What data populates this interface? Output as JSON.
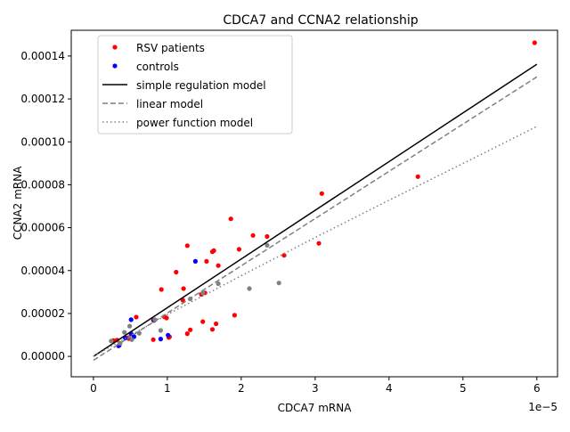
{
  "chart_data": {
    "type": "scatter",
    "title": "CDCA7 and CCNA2 relationship",
    "xlabel": "CDCA7 mRNA",
    "ylabel": "CCNA2 mRNA",
    "x_offset_label": "1e−5",
    "xlim": [
      -3e-06,
      6.28e-05
    ],
    "ylim": [
      -9.5e-06,
      0.000152
    ],
    "x_ticks": [
      0,
      1e-05,
      2e-05,
      3e-05,
      4e-05,
      5e-05,
      6e-05
    ],
    "x_tick_labels": [
      "0",
      "1",
      "2",
      "3",
      "4",
      "5",
      "6"
    ],
    "y_ticks": [
      0,
      2e-05,
      4e-05,
      6e-05,
      8e-05,
      0.0001,
      0.00012,
      0.00014
    ],
    "y_tick_labels": [
      "0.00000",
      "0.00002",
      "0.00004",
      "0.00006",
      "0.00008",
      "0.00010",
      "0.00012",
      "0.00014"
    ],
    "grid": false,
    "legend_position": "top-left",
    "legend": [
      {
        "label": "RSV patients",
        "kind": "marker",
        "color": "#ff0000"
      },
      {
        "label": "controls",
        "kind": "marker",
        "color": "#0000ff"
      },
      {
        "label": "simple regulation model",
        "kind": "line",
        "color": "#000000",
        "dash": "solid"
      },
      {
        "label": "linear model",
        "kind": "line",
        "color": "#808080",
        "dash": "dashed"
      },
      {
        "label": "power function model",
        "kind": "line",
        "color": "#808080",
        "dash": "dotted"
      }
    ],
    "series": [
      {
        "name": "RSV patients",
        "color": "#ff0000",
        "x": [
          5.97e-05,
          4.39e-05,
          3.09e-05,
          3.05e-05,
          2.58e-05,
          2.35e-05,
          2.16e-05,
          1.86e-05,
          1.97e-05,
          1.63e-05,
          1.61e-05,
          1.69e-05,
          1.27e-05,
          1.53e-05,
          1.12e-05,
          1.22e-05,
          9.2e-06,
          1.21e-05,
          1.46e-05,
          1.51e-05,
          1.91e-05,
          1.66e-05,
          1.61e-05,
          1.48e-05,
          1.31e-05,
          1.27e-05,
          1.02e-05,
          9.6e-06,
          8.1e-06,
          5.8e-06,
          1.03e-05,
          9.9e-06,
          8.1e-06,
          4.8e-06,
          3.2e-06,
          2.7e-06,
          4.8e-06
        ],
        "y": [
          0.0001462,
          8.38e-05,
          7.59e-05,
          5.27e-05,
          4.71e-05,
          5.59e-05,
          5.64e-05,
          6.41e-05,
          4.99e-05,
          4.93e-05,
          4.88e-05,
          4.23e-05,
          5.16e-05,
          4.43e-05,
          3.93e-05,
          3.16e-05,
          3.12e-05,
          2.62e-05,
          2.89e-05,
          2.96e-05,
          1.92e-05,
          1.52e-05,
          1.26e-05,
          1.62e-05,
          1.24e-05,
          1.06e-05,
          8.8e-06,
          1.85e-05,
          7.8e-06,
          1.83e-05,
          9.1e-06,
          1.79e-05,
          1.69e-05,
          8.3e-06,
          7.6e-06,
          7.4e-06,
          8.8e-06
        ]
      },
      {
        "name": "controls",
        "color": "#0000ff",
        "x": [
          1.38e-05,
          5.1e-06,
          8.2e-06,
          5.1e-06,
          5.5e-06,
          4.3e-06,
          3.5e-06,
          9.1e-06,
          1.01e-05,
          3.4e-06
        ],
        "y": [
          4.43e-05,
          1.71e-05,
          1.68e-05,
          1.06e-05,
          9.2e-06,
          8.6e-06,
          5.2e-06,
          8.1e-06,
          9.9e-06,
          4.9e-06
        ]
      },
      {
        "name": "",
        "color": "#808080",
        "x": [
          2.35e-05,
          2.11e-05,
          2.51e-05,
          1.48e-05,
          9.1e-06,
          4.9e-06,
          5.2e-06,
          4.2e-06,
          2.4e-06,
          3.6e-06,
          1.31e-05,
          1.69e-05,
          8.3e-06,
          6.2e-06
        ],
        "y": [
          5.18e-05,
          3.16e-05,
          3.42e-05,
          2.96e-05,
          1.21e-05,
          1.41e-05,
          7.8e-06,
          1.12e-05,
          7.2e-06,
          6.1e-06,
          2.68e-05,
          3.39e-05,
          1.71e-05,
          1.08e-05
        ]
      }
    ],
    "models": [
      {
        "name": "simple regulation model",
        "color": "#000000",
        "dash": "solid",
        "x": [
          0,
          6e-05
        ],
        "y": [
          0,
          0.0001362
        ]
      },
      {
        "name": "linear model",
        "color": "#808080",
        "dash": "dashed",
        "x": [
          0,
          6e-05
        ],
        "y": [
          -1.8e-06,
          0.0001303
        ]
      },
      {
        "name": "power function model",
        "color": "#808080",
        "dash": "dotted",
        "x": [
          0,
          1e-05,
          2e-05,
          3e-05,
          4e-05,
          5e-05,
          6e-05
        ],
        "y": [
          0,
          1.95e-05,
          3.76e-05,
          5.54e-05,
          7.28e-05,
          8.99e-05,
          0.0001072
        ]
      }
    ]
  }
}
